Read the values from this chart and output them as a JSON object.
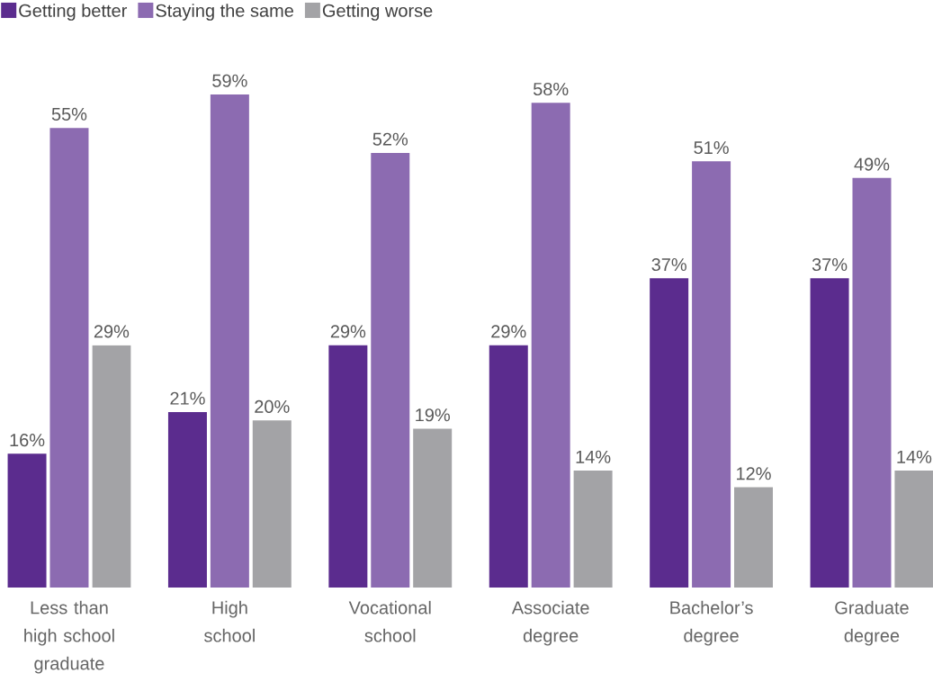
{
  "chart_data": {
    "type": "bar",
    "categories": [
      "Less than high school graduate",
      "High school",
      "Vocational school",
      "Associate degree",
      "Bachelor’s degree",
      "Graduate degree"
    ],
    "series": [
      {
        "name": "Getting better",
        "color": "#5b2c8e",
        "values": [
          16,
          21,
          29,
          29,
          37,
          37
        ],
        "value_labels": [
          "16%",
          "21%",
          "29%",
          "29%",
          "37%",
          "37%"
        ]
      },
      {
        "name": "Staying the same",
        "color": "#8c6bb1",
        "values": [
          55,
          59,
          52,
          58,
          51,
          49
        ],
        "value_labels": [
          "55%",
          "59%",
          "52%",
          "58%",
          "51%",
          "49%"
        ]
      },
      {
        "name": "Getting worse",
        "color": "#a3a3a6",
        "values": [
          29,
          20,
          19,
          14,
          12,
          14
        ],
        "value_labels": [
          "29%",
          "20%",
          "19%",
          "14%",
          "12%",
          "14%"
        ]
      }
    ],
    "legend": "top left"
  }
}
